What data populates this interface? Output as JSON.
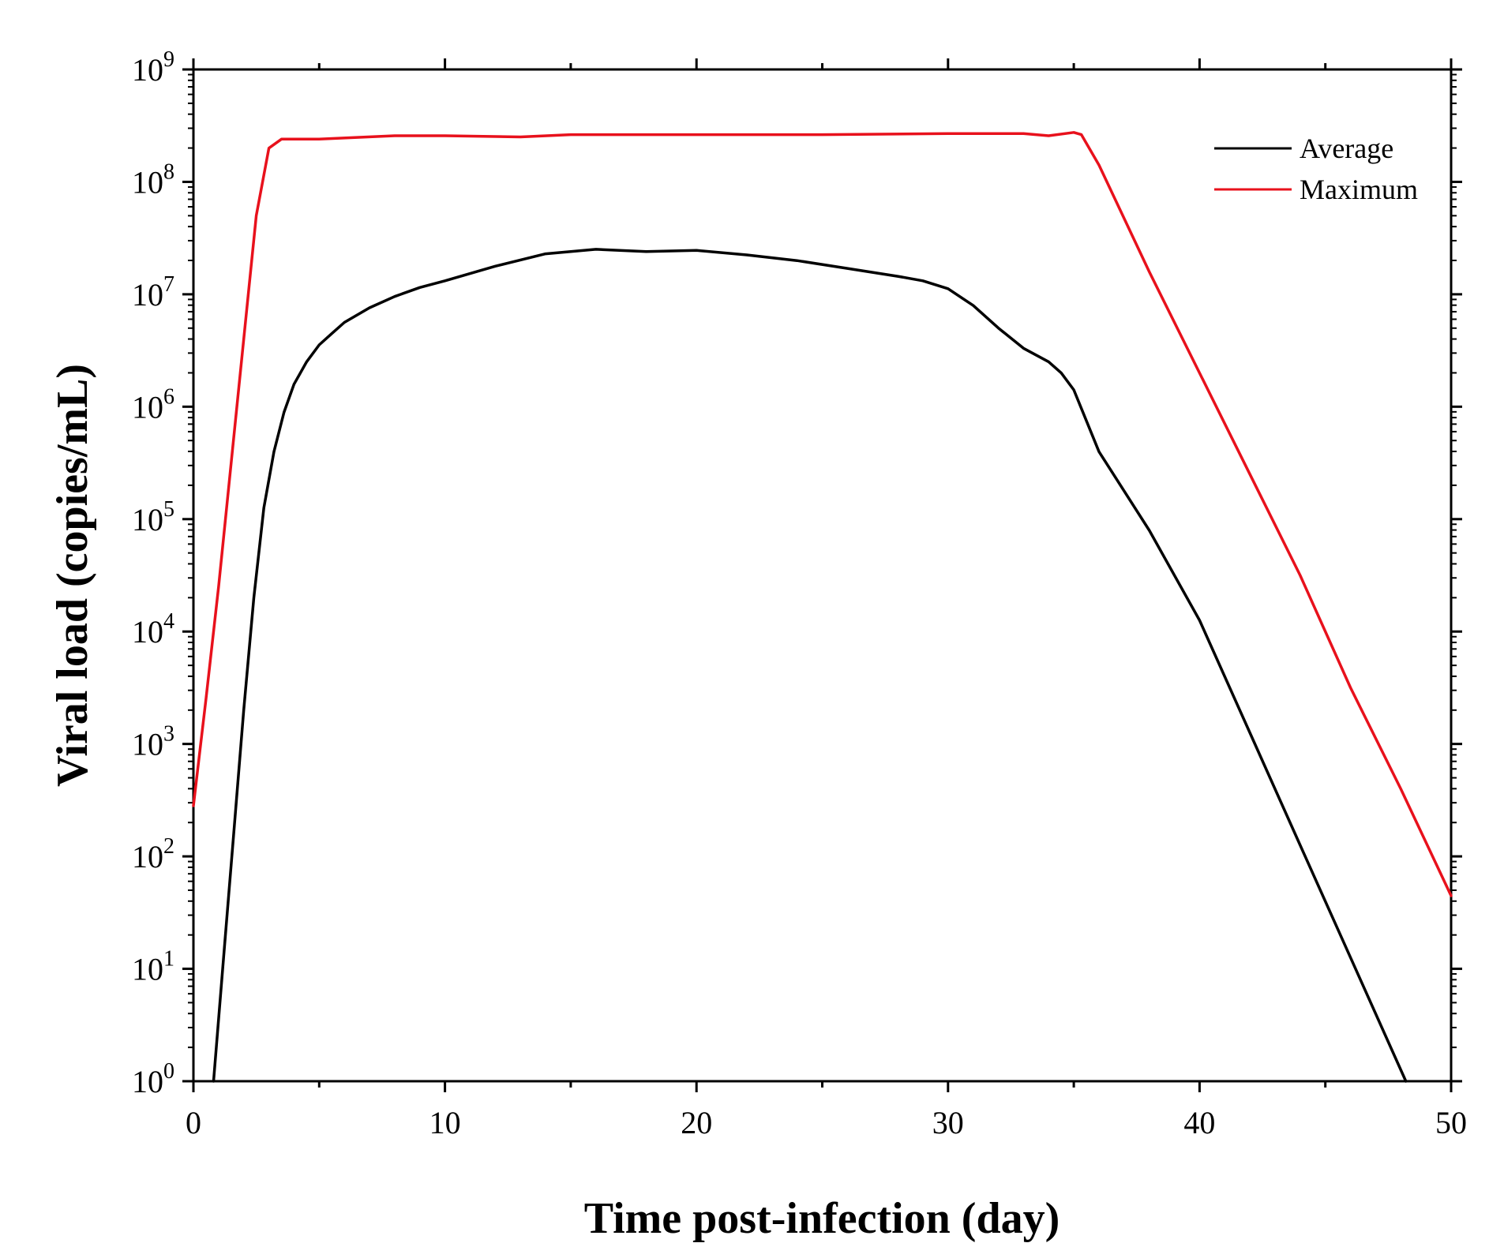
{
  "chart_data": {
    "type": "line",
    "title": "",
    "xlabel": "Time post-infection (day)",
    "ylabel": "Viral load (copies/mL)",
    "xlim": [
      0,
      50
    ],
    "ylim_log10": [
      0,
      9
    ],
    "y_scale": "log",
    "x_ticks": [
      0,
      10,
      20,
      30,
      40,
      50
    ],
    "x_tick_labels": [
      "0",
      "10",
      "20",
      "30",
      "40",
      "50"
    ],
    "y_tick_exponents": [
      0,
      1,
      2,
      3,
      4,
      5,
      6,
      7,
      8,
      9
    ],
    "y_tick_base": "10",
    "grid": false,
    "legend_position": "top-right",
    "series": [
      {
        "name": "Average",
        "color": "#000000",
        "x": [
          0.8,
          1.2,
          1.6,
          2.0,
          2.4,
          2.8,
          3.2,
          3.6,
          4.0,
          4.5,
          5.0,
          5.5,
          6.0,
          7.0,
          8.0,
          9.0,
          10.0,
          12.0,
          14.0,
          16.0,
          18.0,
          20.0,
          22.0,
          24.0,
          26.0,
          28.0,
          29.0,
          30.0,
          31.0,
          32.0,
          33.0,
          34.0,
          34.5,
          35.0,
          36.0,
          38.0,
          40.0,
          42.0,
          44.0,
          46.0,
          48.2
        ],
        "log10_values": [
          0.0,
          1.1,
          2.2,
          3.3,
          4.3,
          5.1,
          5.6,
          5.95,
          6.2,
          6.4,
          6.55,
          6.65,
          6.75,
          6.88,
          6.98,
          7.06,
          7.12,
          7.25,
          7.36,
          7.4,
          7.38,
          7.39,
          7.35,
          7.3,
          7.23,
          7.16,
          7.12,
          7.05,
          6.9,
          6.7,
          6.52,
          6.4,
          6.3,
          6.15,
          5.6,
          4.9,
          4.1,
          3.1,
          2.1,
          1.1,
          0.0
        ]
      },
      {
        "name": "Maximum",
        "color": "#e8111c",
        "x": [
          0.0,
          0.5,
          1.0,
          1.5,
          2.0,
          2.5,
          3.0,
          3.5,
          5.0,
          8.0,
          10.0,
          13.0,
          15.0,
          20.0,
          25.0,
          30.0,
          33.0,
          34.0,
          35.0,
          35.3,
          36.0,
          38.0,
          40.0,
          42.0,
          44.0,
          46.0,
          48.0,
          50.0
        ],
        "log10_values": [
          2.45,
          3.4,
          4.4,
          5.5,
          6.6,
          7.7,
          8.3,
          8.38,
          8.38,
          8.41,
          8.41,
          8.4,
          8.42,
          8.42,
          8.42,
          8.43,
          8.43,
          8.41,
          8.44,
          8.42,
          8.15,
          7.2,
          6.3,
          5.4,
          4.5,
          3.5,
          2.6,
          1.65
        ]
      }
    ]
  }
}
